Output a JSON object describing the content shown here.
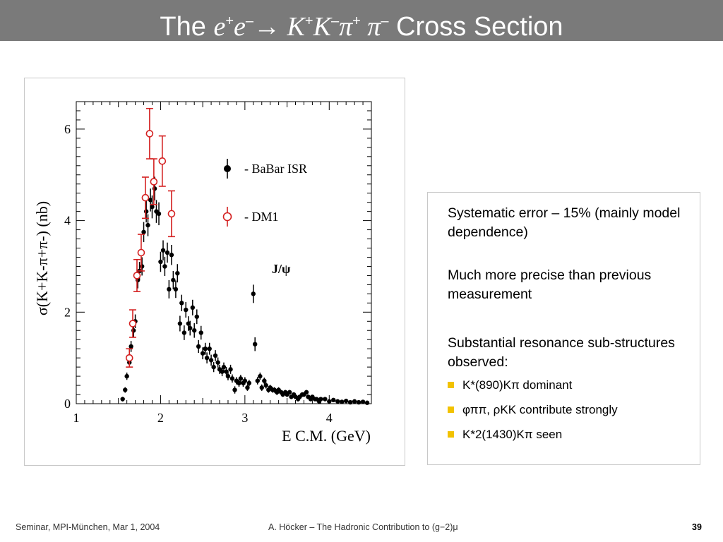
{
  "slide": {
    "title": {
      "prefix": "The ",
      "e1": "e",
      "e1_sup": "+",
      "e2": "e",
      "e2_sup": "–",
      "arrow": "→",
      "k1": " K",
      "k1_sup": "+",
      "k2": "K",
      "k2_sup": "–",
      "pi1": "π",
      "pi1_sup": "+",
      "pi2": " π",
      "pi2_sup": "–",
      "suffix": " Cross Section"
    },
    "points": [
      {
        "text": "Systematic error – 15% (mainly model dependence)"
      },
      {
        "text": "Much more precise than previous measurement"
      },
      {
        "text": "Substantial resonance sub-structures observed:"
      }
    ],
    "sub_points": [
      {
        "text": "K*(890)Kπ  dominant"
      },
      {
        "text": "φππ, ρKK  contribute strongly"
      },
      {
        "text": "K*2(1430)Kπ  seen"
      }
    ],
    "footer": {
      "left": "Seminar, MPI-München, Mar 1, 2004",
      "center": "A. Höcker – The Hadronic Contribution to (g−2)μ",
      "page": "39"
    },
    "colors": {
      "title_bar": "#7a7a7a",
      "bullet": "#f2c200",
      "babar": "#000000",
      "dm1": "#d42020"
    }
  },
  "chart_data": {
    "type": "scatter",
    "xlabel": "E C.M. (GeV)",
    "ylabel": "σ(K+K-π+π-) (nb)",
    "xlim": [
      1,
      4.5
    ],
    "ylim": [
      0,
      6.6
    ],
    "xticks": [
      "1",
      "2",
      "3",
      "4"
    ],
    "yticks": [
      "0",
      "2",
      "4",
      "6"
    ],
    "annotation": "J/ψ",
    "legend_position": "right",
    "series": [
      {
        "name": "- BaBar ISR",
        "marker": "filled-circle",
        "points": [
          {
            "x": 1.55,
            "y": 0.1,
            "e": 0.05
          },
          {
            "x": 1.58,
            "y": 0.3,
            "e": 0.06
          },
          {
            "x": 1.6,
            "y": 0.6,
            "e": 0.08
          },
          {
            "x": 1.63,
            "y": 0.9,
            "e": 0.1
          },
          {
            "x": 1.65,
            "y": 1.25,
            "e": 0.12
          },
          {
            "x": 1.68,
            "y": 1.6,
            "e": 0.14
          },
          {
            "x": 1.7,
            "y": 1.8,
            "e": 0.15
          },
          {
            "x": 1.73,
            "y": 2.7,
            "e": 0.18
          },
          {
            "x": 1.75,
            "y": 2.9,
            "e": 0.2
          },
          {
            "x": 1.78,
            "y": 3.0,
            "e": 0.2
          },
          {
            "x": 1.8,
            "y": 3.75,
            "e": 0.22
          },
          {
            "x": 1.83,
            "y": 4.2,
            "e": 0.24
          },
          {
            "x": 1.85,
            "y": 3.9,
            "e": 0.24
          },
          {
            "x": 1.88,
            "y": 4.45,
            "e": 0.25
          },
          {
            "x": 1.9,
            "y": 4.3,
            "e": 0.25
          },
          {
            "x": 1.93,
            "y": 4.7,
            "e": 0.26
          },
          {
            "x": 1.95,
            "y": 4.2,
            "e": 0.25
          },
          {
            "x": 1.98,
            "y": 4.15,
            "e": 0.25
          },
          {
            "x": 2.0,
            "y": 3.1,
            "e": 0.22
          },
          {
            "x": 2.03,
            "y": 3.35,
            "e": 0.22
          },
          {
            "x": 2.05,
            "y": 3.0,
            "e": 0.21
          },
          {
            "x": 2.08,
            "y": 3.3,
            "e": 0.22
          },
          {
            "x": 2.1,
            "y": 2.5,
            "e": 0.2
          },
          {
            "x": 2.13,
            "y": 3.25,
            "e": 0.22
          },
          {
            "x": 2.15,
            "y": 2.7,
            "e": 0.2
          },
          {
            "x": 2.18,
            "y": 2.5,
            "e": 0.19
          },
          {
            "x": 2.2,
            "y": 2.85,
            "e": 0.2
          },
          {
            "x": 2.23,
            "y": 1.75,
            "e": 0.17
          },
          {
            "x": 2.25,
            "y": 2.2,
            "e": 0.18
          },
          {
            "x": 2.28,
            "y": 1.55,
            "e": 0.16
          },
          {
            "x": 2.3,
            "y": 2.05,
            "e": 0.17
          },
          {
            "x": 2.33,
            "y": 1.75,
            "e": 0.16
          },
          {
            "x": 2.35,
            "y": 1.65,
            "e": 0.16
          },
          {
            "x": 2.38,
            "y": 2.1,
            "e": 0.17
          },
          {
            "x": 2.4,
            "y": 1.6,
            "e": 0.16
          },
          {
            "x": 2.43,
            "y": 1.9,
            "e": 0.16
          },
          {
            "x": 2.45,
            "y": 1.25,
            "e": 0.14
          },
          {
            "x": 2.48,
            "y": 1.55,
            "e": 0.15
          },
          {
            "x": 2.5,
            "y": 1.1,
            "e": 0.13
          },
          {
            "x": 2.53,
            "y": 1.2,
            "e": 0.13
          },
          {
            "x": 2.55,
            "y": 1.0,
            "e": 0.12
          },
          {
            "x": 2.58,
            "y": 1.2,
            "e": 0.13
          },
          {
            "x": 2.6,
            "y": 0.95,
            "e": 0.12
          },
          {
            "x": 2.63,
            "y": 0.8,
            "e": 0.11
          },
          {
            "x": 2.65,
            "y": 1.05,
            "e": 0.12
          },
          {
            "x": 2.68,
            "y": 0.9,
            "e": 0.11
          },
          {
            "x": 2.7,
            "y": 0.75,
            "e": 0.1
          },
          {
            "x": 2.73,
            "y": 0.7,
            "e": 0.1
          },
          {
            "x": 2.75,
            "y": 0.8,
            "e": 0.1
          },
          {
            "x": 2.78,
            "y": 0.7,
            "e": 0.1
          },
          {
            "x": 2.8,
            "y": 0.6,
            "e": 0.09
          },
          {
            "x": 2.83,
            "y": 0.75,
            "e": 0.1
          },
          {
            "x": 2.85,
            "y": 0.55,
            "e": 0.09
          },
          {
            "x": 2.88,
            "y": 0.3,
            "e": 0.08
          },
          {
            "x": 2.9,
            "y": 0.5,
            "e": 0.08
          },
          {
            "x": 2.93,
            "y": 0.45,
            "e": 0.08
          },
          {
            "x": 2.95,
            "y": 0.55,
            "e": 0.08
          },
          {
            "x": 2.98,
            "y": 0.45,
            "e": 0.08
          },
          {
            "x": 3.0,
            "y": 0.5,
            "e": 0.08
          },
          {
            "x": 3.03,
            "y": 0.35,
            "e": 0.07
          },
          {
            "x": 3.05,
            "y": 0.45,
            "e": 0.07
          },
          {
            "x": 3.1,
            "y": 2.4,
            "e": 0.2
          },
          {
            "x": 3.12,
            "y": 1.3,
            "e": 0.15
          },
          {
            "x": 3.15,
            "y": 0.5,
            "e": 0.08
          },
          {
            "x": 3.18,
            "y": 0.6,
            "e": 0.08
          },
          {
            "x": 3.2,
            "y": 0.35,
            "e": 0.07
          },
          {
            "x": 3.23,
            "y": 0.5,
            "e": 0.07
          },
          {
            "x": 3.25,
            "y": 0.4,
            "e": 0.07
          },
          {
            "x": 3.28,
            "y": 0.3,
            "e": 0.06
          },
          {
            "x": 3.3,
            "y": 0.35,
            "e": 0.06
          },
          {
            "x": 3.33,
            "y": 0.3,
            "e": 0.06
          },
          {
            "x": 3.35,
            "y": 0.3,
            "e": 0.06
          },
          {
            "x": 3.38,
            "y": 0.25,
            "e": 0.06
          },
          {
            "x": 3.4,
            "y": 0.3,
            "e": 0.06
          },
          {
            "x": 3.43,
            "y": 0.25,
            "e": 0.05
          },
          {
            "x": 3.45,
            "y": 0.2,
            "e": 0.05
          },
          {
            "x": 3.48,
            "y": 0.25,
            "e": 0.05
          },
          {
            "x": 3.5,
            "y": 0.2,
            "e": 0.05
          },
          {
            "x": 3.53,
            "y": 0.25,
            "e": 0.05
          },
          {
            "x": 3.55,
            "y": 0.15,
            "e": 0.05
          },
          {
            "x": 3.58,
            "y": 0.2,
            "e": 0.05
          },
          {
            "x": 3.6,
            "y": 0.15,
            "e": 0.05
          },
          {
            "x": 3.63,
            "y": 0.1,
            "e": 0.05
          },
          {
            "x": 3.65,
            "y": 0.15,
            "e": 0.05
          },
          {
            "x": 3.68,
            "y": 0.2,
            "e": 0.05
          },
          {
            "x": 3.7,
            "y": 0.2,
            "e": 0.05
          },
          {
            "x": 3.73,
            "y": 0.25,
            "e": 0.05
          },
          {
            "x": 3.75,
            "y": 0.15,
            "e": 0.05
          },
          {
            "x": 3.78,
            "y": 0.1,
            "e": 0.04
          },
          {
            "x": 3.8,
            "y": 0.15,
            "e": 0.04
          },
          {
            "x": 3.83,
            "y": 0.1,
            "e": 0.04
          },
          {
            "x": 3.85,
            "y": 0.1,
            "e": 0.04
          },
          {
            "x": 3.88,
            "y": 0.05,
            "e": 0.04
          },
          {
            "x": 3.9,
            "y": 0.1,
            "e": 0.04
          },
          {
            "x": 3.95,
            "y": 0.1,
            "e": 0.04
          },
          {
            "x": 4.0,
            "y": 0.05,
            "e": 0.04
          },
          {
            "x": 4.05,
            "y": 0.08,
            "e": 0.04
          },
          {
            "x": 4.1,
            "y": 0.05,
            "e": 0.04
          },
          {
            "x": 4.15,
            "y": 0.04,
            "e": 0.03
          },
          {
            "x": 4.2,
            "y": 0.06,
            "e": 0.03
          },
          {
            "x": 4.25,
            "y": 0.03,
            "e": 0.03
          },
          {
            "x": 4.3,
            "y": 0.05,
            "e": 0.03
          },
          {
            "x": 4.35,
            "y": 0.03,
            "e": 0.03
          },
          {
            "x": 4.4,
            "y": 0.04,
            "e": 0.03
          },
          {
            "x": 4.45,
            "y": 0.02,
            "e": 0.03
          }
        ]
      },
      {
        "name": "- DM1",
        "marker": "open-circle",
        "points": [
          {
            "x": 1.63,
            "y": 1.0,
            "e": 0.2
          },
          {
            "x": 1.67,
            "y": 1.75,
            "e": 0.3
          },
          {
            "x": 1.72,
            "y": 2.8,
            "e": 0.35
          },
          {
            "x": 1.77,
            "y": 3.3,
            "e": 0.4
          },
          {
            "x": 1.82,
            "y": 4.5,
            "e": 0.45
          },
          {
            "x": 1.87,
            "y": 5.9,
            "e": 0.55
          },
          {
            "x": 1.92,
            "y": 4.85,
            "e": 0.5
          },
          {
            "x": 2.02,
            "y": 5.3,
            "e": 0.55
          },
          {
            "x": 2.13,
            "y": 4.15,
            "e": 0.5
          }
        ]
      }
    ]
  }
}
